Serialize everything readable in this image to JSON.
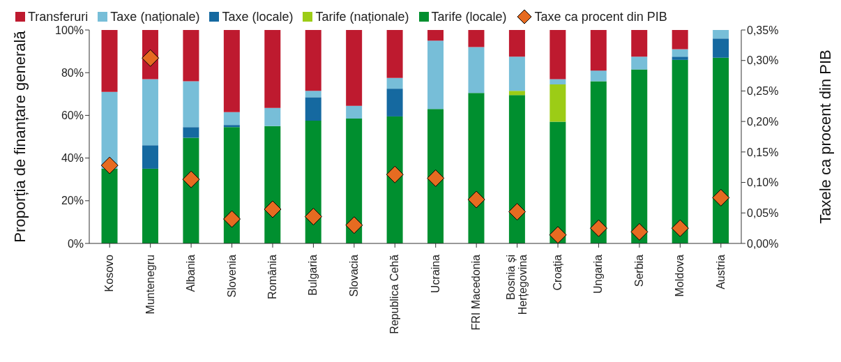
{
  "chart_data": {
    "type": "bar",
    "stacked": true,
    "ylabel": "Proporția de finanțare generală",
    "y2label": "Taxele ca procent din PIB",
    "legend": "top",
    "grid": false,
    "categories": [
      "Kosovo",
      "Muntenegru",
      "Albania",
      "Slovenia",
      "România",
      "Bulgaria",
      "Slovacia",
      "Republica Cehă",
      "Ucraina",
      "FRI Macedonia",
      "Bosnia și Herțegovina",
      "Croația",
      "Ungaria",
      "Serbia",
      "Moldova",
      "Austria"
    ],
    "ylim": [
      0,
      100
    ],
    "yticks": [
      {
        "value": 0,
        "label": "0%"
      },
      {
        "value": 20,
        "label": "20%"
      },
      {
        "value": 40,
        "label": "40%"
      },
      {
        "value": 60,
        "label": "60%"
      },
      {
        "value": 80,
        "label": "80%"
      },
      {
        "value": 100,
        "label": "100%"
      }
    ],
    "y2lim": [
      0,
      0.35
    ],
    "y2ticks": [
      {
        "value": 0,
        "label": "0,00%"
      },
      {
        "value": 0.05,
        "label": "0,05%"
      },
      {
        "value": 0.1,
        "label": "0,10%"
      },
      {
        "value": 0.15,
        "label": "0,15%"
      },
      {
        "value": 0.2,
        "label": "0,20%"
      },
      {
        "value": 0.25,
        "label": "0,25%"
      },
      {
        "value": 0.3,
        "label": "0,30%"
      },
      {
        "value": 0.35,
        "label": "0,35%"
      }
    ],
    "series": [
      {
        "name": "Tarife (locale)",
        "color": "#008f2f",
        "values": [
          35,
          35,
          49.5,
          54.5,
          55,
          57.5,
          58.5,
          59.5,
          63,
          70.5,
          69.5,
          57,
          76,
          81.5,
          86,
          87
        ]
      },
      {
        "name": "Tarife (naționale)",
        "color": "#9ccc16",
        "values": [
          0,
          0,
          0,
          0,
          0,
          0,
          0,
          0,
          0,
          0,
          2,
          17.5,
          0,
          0,
          0,
          0
        ]
      },
      {
        "name": "Taxe (locale)",
        "color": "#1569a0",
        "values": [
          null,
          11,
          5,
          1,
          0,
          11,
          0,
          13,
          0,
          0,
          0,
          0,
          0,
          0,
          1.5,
          9
        ]
      },
      {
        "name": "Taxe (naționale)",
        "color": "#77bed8",
        "values": [
          36,
          31,
          21.5,
          6,
          8.5,
          3,
          6,
          5,
          32,
          21.5,
          16,
          2.5,
          5,
          6,
          3.5,
          4
        ]
      },
      {
        "name": "Transferuri",
        "color": "#be1a2f",
        "values": [
          29,
          23,
          24,
          38.5,
          36.5,
          28.5,
          35.5,
          22.5,
          5,
          8,
          12.5,
          23,
          19,
          12.5,
          9,
          0
        ]
      },
      {
        "name": "Taxe ca procent din PIB",
        "type": "scatter",
        "axis": "y2",
        "marker": "diamond",
        "color": "#e66b21",
        "values": [
          0.128,
          0.304,
          0.105,
          0.04,
          0.056,
          0.044,
          0.03,
          0.113,
          0.107,
          0.072,
          0.052,
          0.014,
          0.025,
          0.019,
          0.025,
          0.075
        ]
      }
    ]
  }
}
